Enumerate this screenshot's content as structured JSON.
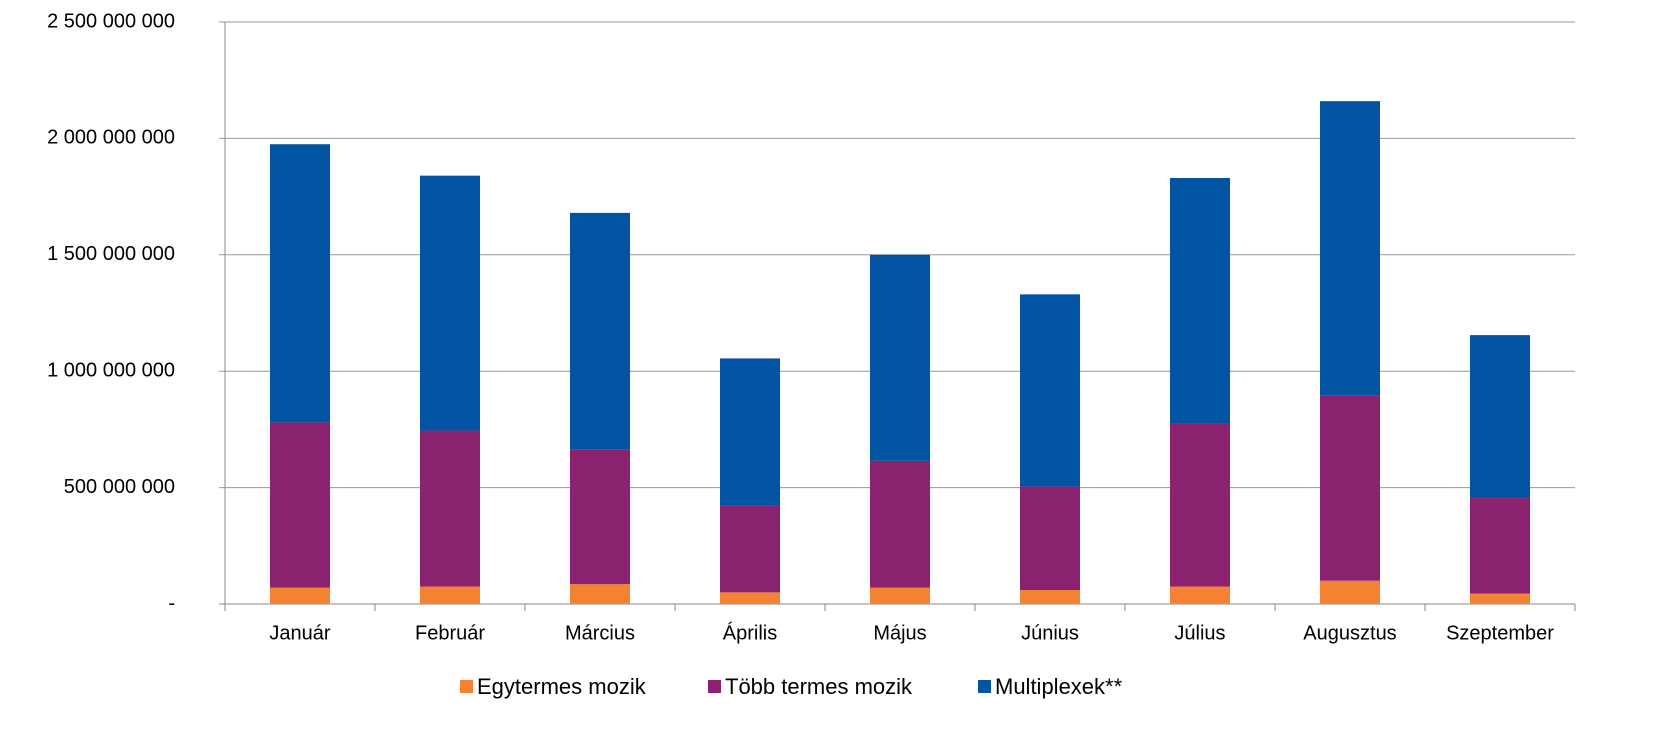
{
  "chart_data": {
    "type": "stacked_bar",
    "categories": [
      "Január",
      "Február",
      "Március",
      "Április",
      "Május",
      "Június",
      "Július",
      "Augusztus",
      "Szeptember"
    ],
    "series": [
      {
        "name": "Egytermes mozik",
        "color": "#f58233",
        "values": [
          70000000,
          75000000,
          85000000,
          50000000,
          70000000,
          60000000,
          75000000,
          100000000,
          45000000
        ]
      },
      {
        "name": "Több termes mozik",
        "color": "#8b2270",
        "values": [
          710000000,
          670000000,
          580000000,
          375000000,
          545000000,
          445000000,
          700000000,
          795000000,
          410000000
        ]
      },
      {
        "name": "Multiplexek**",
        "color": "#0054a2",
        "values": [
          1195000000,
          1095000000,
          1015000000,
          630000000,
          885000000,
          825000000,
          1055000000,
          1265000000,
          700000000
        ]
      }
    ],
    "ylim": [
      0,
      2500000000
    ],
    "yticks": [
      {
        "value": 0,
        "label": "-"
      },
      {
        "value": 500000000,
        "label": "500 000 000"
      },
      {
        "value": 1000000000,
        "label": "1 000 000 000"
      },
      {
        "value": 1500000000,
        "label": "1 500 000 000"
      },
      {
        "value": 2000000000,
        "label": "2 000 000 000"
      },
      {
        "value": 2500000000,
        "label": "2 500 000 000"
      }
    ],
    "grid": true,
    "legend": "bottom"
  }
}
